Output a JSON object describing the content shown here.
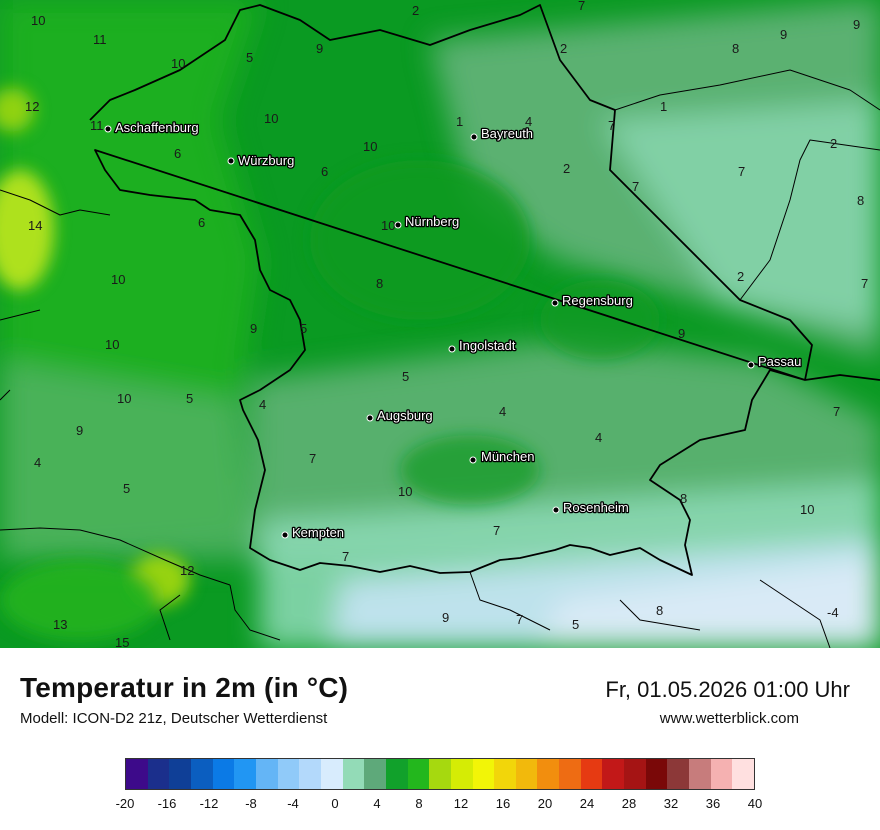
{
  "title": "Temperatur in 2m (in °C)",
  "model_info": "Modell: ICON-D2 21z, Deutscher Wetterdienst",
  "datetime": "Fr, 01.05.2026 01:00 Uhr",
  "website": "www.wetterblick.com",
  "colors": {
    "green_dark": "#0a9a22",
    "green_mid": "#21b31e",
    "green_light": "#64b47a",
    "mint": "#8fdab8",
    "pale_blue": "#c5e4f5",
    "yellow_green": "#b6e41a",
    "border": "#000000"
  },
  "cities": [
    {
      "name": "Aschaffenburg"
    },
    {
      "name": "Würzburg"
    },
    {
      "name": "Bayreuth"
    },
    {
      "name": "Nürnberg"
    },
    {
      "name": "Regensburg"
    },
    {
      "name": "Ingolstadt"
    },
    {
      "name": "Passau"
    },
    {
      "name": "Augsburg"
    },
    {
      "name": "München"
    },
    {
      "name": "Rosenheim"
    },
    {
      "name": "Kempten"
    }
  ],
  "temperature_labels": [
    "10",
    "11",
    "12",
    "11",
    "6",
    "10",
    "14",
    "10",
    "10",
    "9",
    "4",
    "5",
    "9",
    "10",
    "5",
    "10",
    "6",
    "6",
    "10",
    "9",
    "5",
    "10",
    "8",
    "5",
    "4",
    "7",
    "5",
    "10",
    "7",
    "2",
    "2",
    "4",
    "1",
    "7",
    "2",
    "1",
    "7",
    "7",
    "7",
    "2",
    "8",
    "9",
    "8",
    "7",
    "2",
    "9",
    "9",
    "4",
    "4",
    "8",
    "10",
    "7",
    "7",
    "5",
    "8",
    "9",
    "7",
    "-4",
    "12",
    "13",
    "15"
  ],
  "legend": {
    "colors": [
      "#3d0a8a",
      "#1b2f8c",
      "#0f3f97",
      "#0b5ec0",
      "#0b7ae6",
      "#2196f3",
      "#64b5f6",
      "#90caf9",
      "#b3d9fb",
      "#d8ecfd",
      "#93dbb7",
      "#5ea97a",
      "#11a12b",
      "#23b71d",
      "#a6d90f",
      "#d5ec05",
      "#f2f507",
      "#f2d60a",
      "#f2b90c",
      "#f28e0e",
      "#ee6c13",
      "#e63a12",
      "#c21818",
      "#a51414",
      "#7a0808",
      "#8c3838",
      "#c77c7c",
      "#f5b1b1",
      "#ffe0e0"
    ],
    "ticks": [
      "-20",
      "-16",
      "-12",
      "-8",
      "-4",
      "0",
      "4",
      "8",
      "12",
      "16",
      "20",
      "24",
      "28",
      "32",
      "36",
      "40"
    ]
  }
}
